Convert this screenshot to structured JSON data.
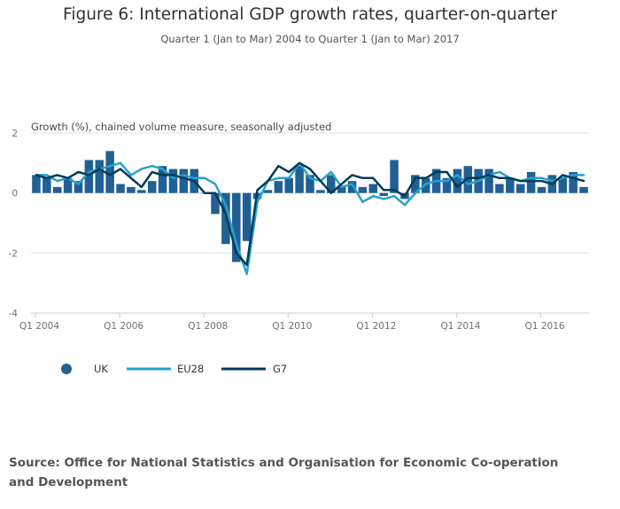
{
  "title": "Figure 6: International GDP growth rates, quarter-on-quarter",
  "subtitle": "Quarter 1 (Jan to Mar) 2004 to Quarter 1 (Jan to Mar) 2017",
  "source": "Source: Office for National Statistics and Organisation for Economic Co-operation and Development",
  "colors": {
    "uk": "#206095",
    "eu28": "#27a0cc",
    "g7": "#003c57",
    "grid": "#e0e0e0"
  },
  "chart_data": {
    "type": "bar",
    "title": "Figure 6: International GDP growth rates, quarter-on-quarter",
    "ylabel": "Growth (%), chained volume measure, seasonally adjusted",
    "xlabel": "",
    "ylim": [
      -4,
      2
    ],
    "yticks": [
      2,
      0,
      -2,
      -4
    ],
    "xtick_labels": [
      "Q1 2004",
      "Q1 2006",
      "Q1 2008",
      "Q1 2010",
      "Q1 2012",
      "Q1 2014",
      "Q1 2016"
    ],
    "xtick_index": [
      0,
      8,
      16,
      24,
      32,
      40,
      48
    ],
    "categories": [
      "Q1 2004",
      "Q2 2004",
      "Q3 2004",
      "Q4 2004",
      "Q1 2005",
      "Q2 2005",
      "Q3 2005",
      "Q4 2005",
      "Q1 2006",
      "Q2 2006",
      "Q3 2006",
      "Q4 2006",
      "Q1 2007",
      "Q2 2007",
      "Q3 2007",
      "Q4 2007",
      "Q1 2008",
      "Q2 2008",
      "Q3 2008",
      "Q4 2008",
      "Q1 2009",
      "Q2 2009",
      "Q3 2009",
      "Q4 2009",
      "Q1 2010",
      "Q2 2010",
      "Q3 2010",
      "Q4 2010",
      "Q1 2011",
      "Q2 2011",
      "Q3 2011",
      "Q4 2011",
      "Q1 2012",
      "Q2 2012",
      "Q3 2012",
      "Q4 2012",
      "Q1 2013",
      "Q2 2013",
      "Q3 2013",
      "Q4 2013",
      "Q1 2014",
      "Q2 2014",
      "Q3 2014",
      "Q4 2014",
      "Q1 2015",
      "Q2 2015",
      "Q3 2015",
      "Q4 2015",
      "Q1 2016",
      "Q2 2016",
      "Q3 2016",
      "Q4 2016",
      "Q1 2017"
    ],
    "series": [
      {
        "name": "UK",
        "type": "bar",
        "values": [
          0.6,
          0.5,
          0.2,
          0.5,
          0.4,
          1.1,
          1.1,
          1.4,
          0.3,
          0.2,
          0.1,
          0.4,
          0.9,
          0.8,
          0.8,
          0.8,
          0.0,
          -0.7,
          -1.7,
          -2.3,
          -1.6,
          -0.2,
          0.1,
          0.4,
          0.5,
          0.9,
          0.6,
          0.1,
          0.6,
          0.2,
          0.4,
          0.2,
          0.3,
          -0.1,
          1.1,
          -0.2,
          0.6,
          0.5,
          0.8,
          0.5,
          0.8,
          0.9,
          0.8,
          0.8,
          0.3,
          0.5,
          0.3,
          0.7,
          0.2,
          0.6,
          0.5,
          0.7,
          0.2
        ]
      },
      {
        "name": "EU28",
        "type": "line",
        "values": [
          0.6,
          0.6,
          0.4,
          0.5,
          0.3,
          0.7,
          0.8,
          0.9,
          1.0,
          0.6,
          0.8,
          0.9,
          0.8,
          0.5,
          0.6,
          0.5,
          0.5,
          0.3,
          -0.4,
          -1.7,
          -2.7,
          -0.3,
          0.4,
          0.5,
          0.5,
          1.0,
          0.5,
          0.4,
          0.7,
          0.2,
          0.3,
          -0.3,
          -0.1,
          -0.2,
          -0.1,
          -0.4,
          0.0,
          0.3,
          0.4,
          0.4,
          0.6,
          0.3,
          0.4,
          0.6,
          0.7,
          0.5,
          0.4,
          0.5,
          0.5,
          0.4,
          0.5,
          0.6,
          0.6
        ]
      },
      {
        "name": "G7",
        "type": "line",
        "values": [
          0.6,
          0.5,
          0.6,
          0.5,
          0.7,
          0.6,
          0.8,
          0.6,
          0.8,
          0.5,
          0.2,
          0.7,
          0.6,
          0.6,
          0.5,
          0.4,
          0.0,
          0.0,
          -0.7,
          -2.0,
          -2.4,
          0.1,
          0.4,
          0.9,
          0.7,
          1.0,
          0.8,
          0.4,
          0.0,
          0.3,
          0.6,
          0.5,
          0.5,
          0.1,
          0.1,
          -0.1,
          0.5,
          0.5,
          0.7,
          0.7,
          0.2,
          0.5,
          0.5,
          0.6,
          0.5,
          0.5,
          0.4,
          0.4,
          0.4,
          0.3,
          0.6,
          0.5,
          0.4
        ]
      }
    ],
    "legend": {
      "placement": "bottom-left",
      "items": [
        "UK",
        "EU28",
        "G7"
      ]
    }
  }
}
